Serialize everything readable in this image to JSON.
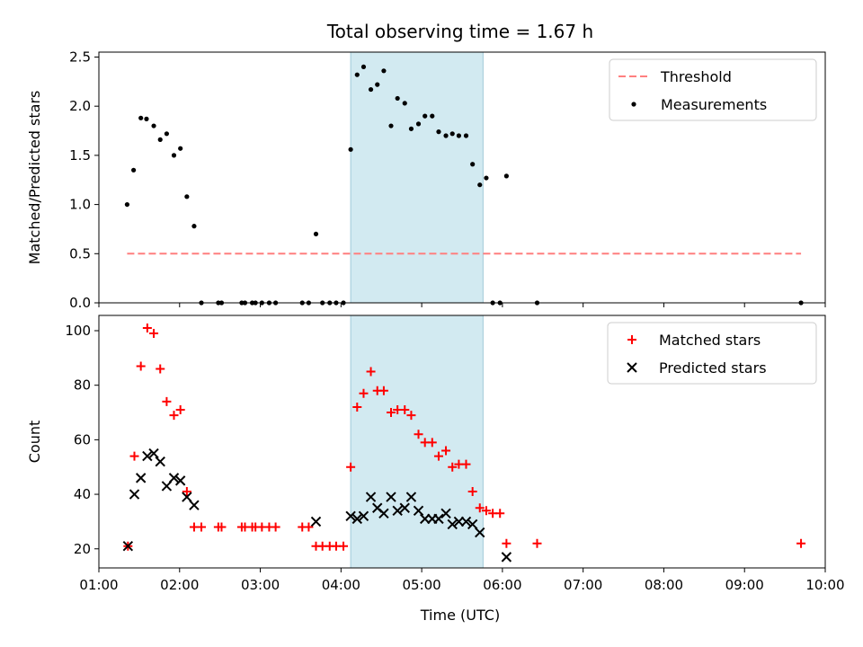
{
  "chart_data": {
    "type": "scatter",
    "title": "Total observing time = 1.67 h",
    "xlabel": "Time (UTC)",
    "xlim": [
      1.0,
      10.0
    ],
    "x_ticks": [
      "01:00",
      "02:00",
      "03:00",
      "04:00",
      "05:00",
      "06:00",
      "07:00",
      "08:00",
      "09:00",
      "10:00"
    ],
    "x_tick_values": [
      1,
      2,
      3,
      4,
      5,
      6,
      7,
      8,
      9,
      10
    ],
    "highlight_span": [
      4.12,
      5.76
    ],
    "highlight_color": "#add8e6",
    "panels": [
      {
        "id": "ratio",
        "ylabel": "Matched/Predicted stars",
        "ylim": [
          0,
          2.55
        ],
        "y_ticks": [
          0,
          0.5,
          1.0,
          1.5,
          2.0,
          2.5
        ],
        "y_tick_labels": [
          "0.0",
          "0.5",
          "1.0",
          "1.5",
          "2.0",
          "2.5"
        ],
        "legend": {
          "position": "upper right",
          "entries": [
            "Threshold",
            "Measurements"
          ]
        },
        "threshold": {
          "name": "Threshold",
          "value": 0.5,
          "x": [
            1.35,
            9.7
          ],
          "color": "#ff7f7f"
        },
        "series": [
          {
            "name": "Measurements",
            "marker": "dot",
            "color": "#000000",
            "x": [
              1.35,
              1.43,
              1.52,
              1.59,
              1.68,
              1.76,
              1.84,
              1.93,
              2.01,
              2.09,
              2.18,
              2.27,
              2.48,
              2.52,
              2.77,
              2.81,
              2.9,
              2.94,
              3.02,
              3.11,
              3.19,
              3.52,
              3.6,
              3.69,
              3.77,
              3.86,
              3.94,
              4.03,
              4.12,
              4.2,
              4.28,
              4.37,
              4.45,
              4.53,
              4.62,
              4.7,
              4.79,
              4.87,
              4.96,
              5.04,
              5.13,
              5.21,
              5.3,
              5.38,
              5.46,
              5.55,
              5.63,
              5.72,
              5.8,
              5.88,
              5.97,
              6.05,
              6.43,
              9.7
            ],
            "y": [
              1.0,
              1.35,
              1.88,
              1.87,
              1.8,
              1.66,
              1.72,
              1.5,
              1.57,
              1.08,
              0.78,
              0.0,
              0.0,
              0.0,
              0.0,
              0.0,
              0.0,
              0.0,
              0.0,
              0.0,
              0.0,
              0.0,
              0.0,
              0.7,
              0.0,
              0.0,
              0.0,
              0.0,
              1.56,
              2.32,
              2.4,
              2.17,
              2.22,
              2.36,
              1.8,
              2.08,
              2.03,
              1.77,
              1.82,
              1.9,
              1.9,
              1.74,
              1.7,
              1.72,
              1.7,
              1.7,
              1.41,
              1.2,
              1.27,
              0.0,
              0.0,
              1.29,
              0.0,
              0.0
            ]
          }
        ]
      },
      {
        "id": "count",
        "ylabel": "Count",
        "ylim": [
          13,
          105.6
        ],
        "y_ticks": [
          20,
          40,
          60,
          80,
          100
        ],
        "y_tick_labels": [
          "20",
          "40",
          "60",
          "80",
          "100"
        ],
        "legend": {
          "position": "upper right",
          "entries": [
            "Matched stars",
            "Predicted stars"
          ]
        },
        "series": [
          {
            "name": "Matched stars",
            "marker": "plus",
            "color": "#ff0000",
            "x": [
              1.36,
              1.44,
              1.52,
              1.6,
              1.68,
              1.76,
              1.84,
              1.93,
              2.01,
              2.09,
              2.18,
              2.27,
              2.48,
              2.52,
              2.77,
              2.81,
              2.9,
              2.94,
              3.02,
              3.11,
              3.19,
              3.52,
              3.6,
              3.69,
              3.77,
              3.86,
              3.94,
              4.03,
              4.12,
              4.2,
              4.28,
              4.37,
              4.45,
              4.53,
              4.62,
              4.7,
              4.79,
              4.87,
              4.96,
              5.04,
              5.13,
              5.21,
              5.3,
              5.38,
              5.46,
              5.55,
              5.63,
              5.72,
              5.8,
              5.88,
              5.97,
              6.05,
              6.43,
              9.7
            ],
            "y": [
              21,
              54,
              87,
              101,
              99,
              86,
              74,
              69,
              71,
              41,
              28,
              28,
              28,
              28,
              28,
              28,
              28,
              28,
              28,
              28,
              28,
              28,
              28,
              21,
              21,
              21,
              21,
              21,
              50,
              72,
              77,
              85,
              78,
              78,
              70,
              71,
              71,
              69,
              62,
              59,
              59,
              54,
              56,
              50,
              51,
              51,
              41,
              35,
              34,
              33,
              33,
              22,
              22,
              22
            ]
          },
          {
            "name": "Predicted stars",
            "marker": "x",
            "color": "#000000",
            "x": [
              1.36,
              1.44,
              1.52,
              1.6,
              1.68,
              1.76,
              1.84,
              1.93,
              2.01,
              2.09,
              2.18,
              3.69,
              4.12,
              4.2,
              4.28,
              4.37,
              4.45,
              4.53,
              4.62,
              4.7,
              4.79,
              4.87,
              4.96,
              5.04,
              5.13,
              5.21,
              5.3,
              5.38,
              5.46,
              5.55,
              5.63,
              5.72,
              6.05
            ],
            "y": [
              21,
              40,
              46,
              54,
              55,
              52,
              43,
              46,
              45,
              39,
              36,
              30,
              32,
              31,
              32,
              39,
              35,
              33,
              39,
              34,
              35,
              39,
              34,
              31,
              31,
              31,
              33,
              29,
              30,
              30,
              29,
              26,
              17
            ]
          }
        ]
      }
    ]
  }
}
